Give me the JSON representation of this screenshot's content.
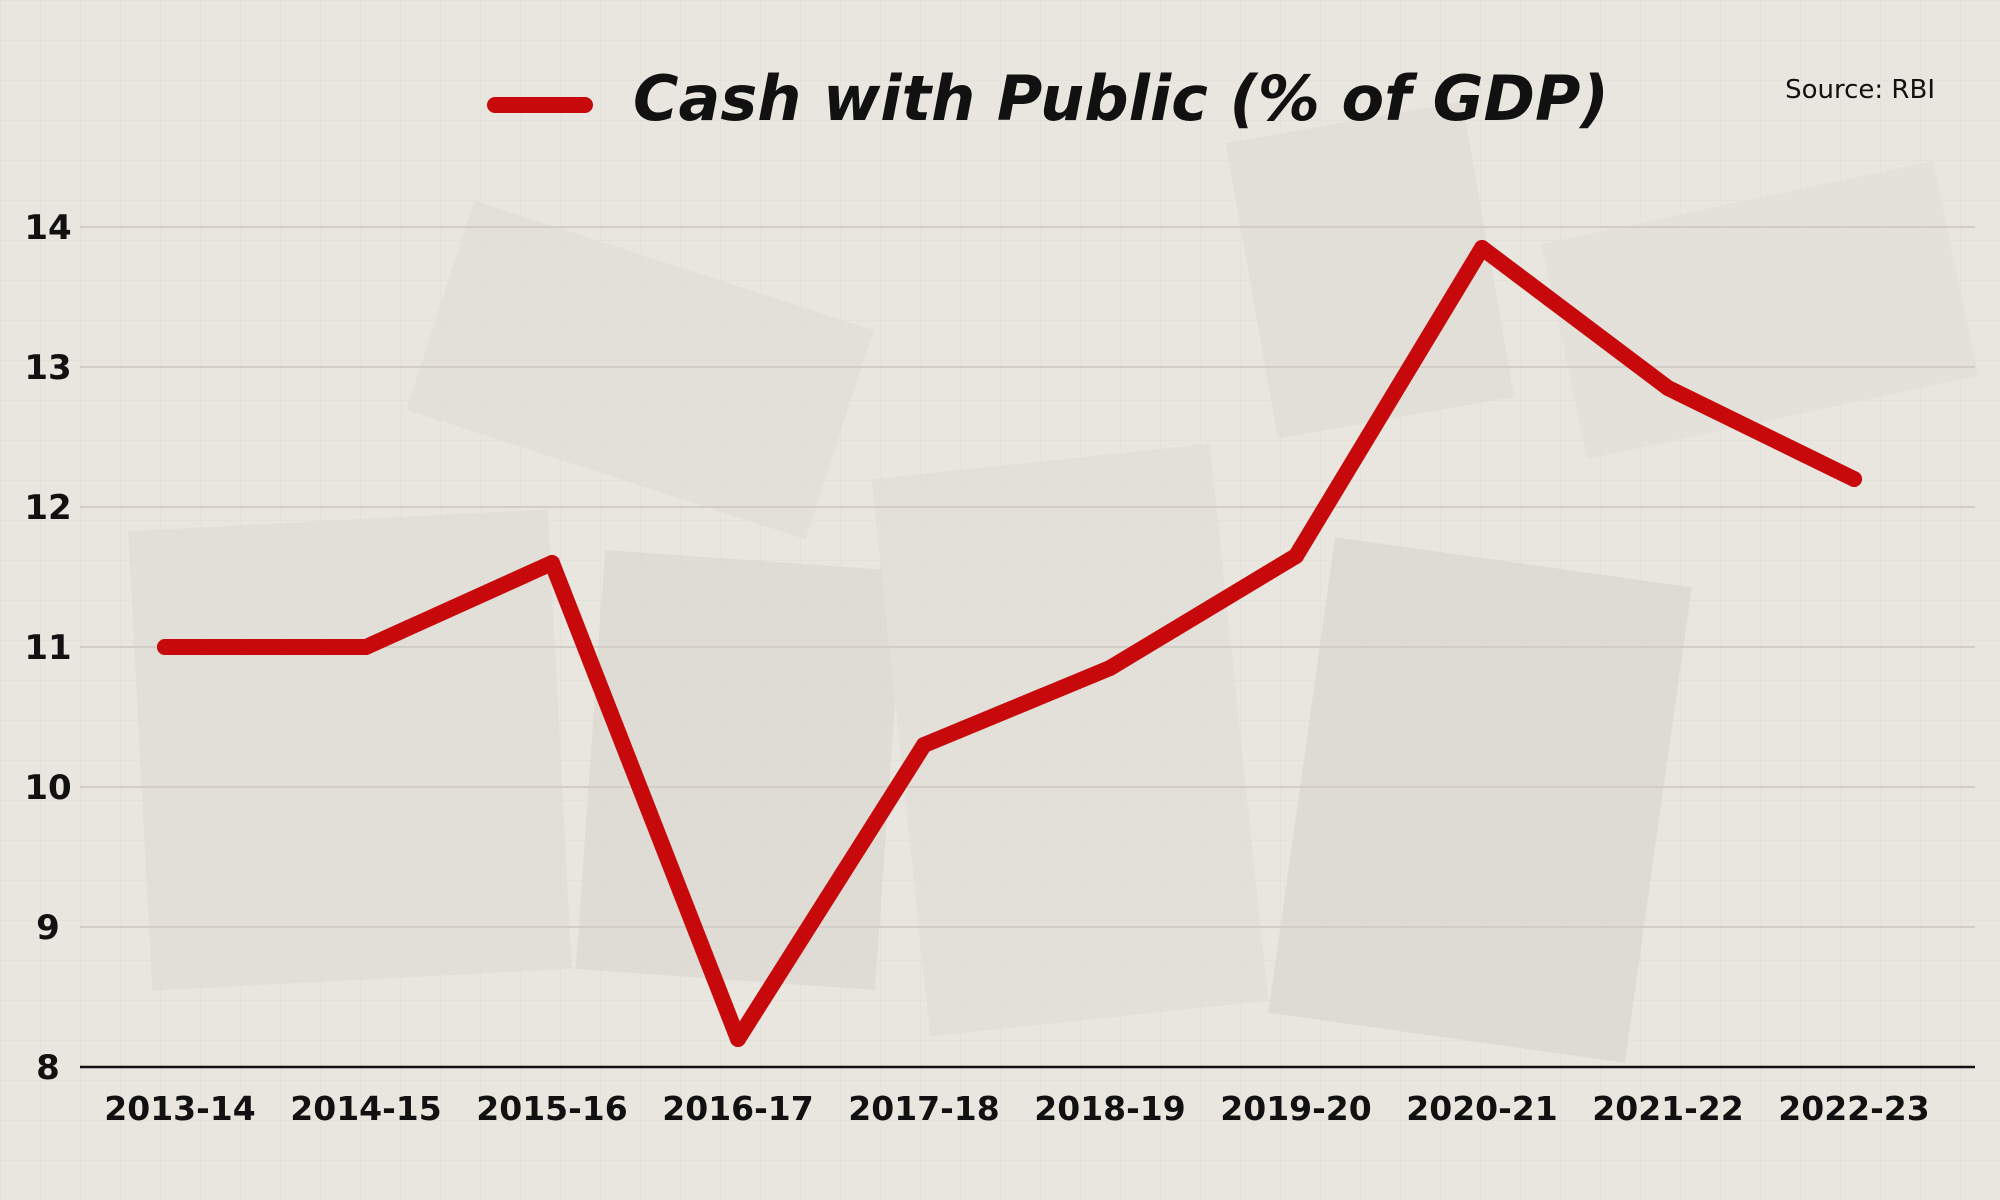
{
  "chart_data": {
    "type": "line",
    "title": "",
    "source": "Source: RBI",
    "categories": [
      "2013-14",
      "2014-15",
      "2015-16",
      "2016-17",
      "2017-18",
      "2018-19",
      "2019-20",
      "2020-21",
      "2021-22",
      "2022-23"
    ],
    "series": [
      {
        "name": "Cash with Public (% of GDP)",
        "color": "#c8090c",
        "values": [
          11.0,
          11.0,
          11.6,
          8.2,
          10.3,
          10.85,
          11.65,
          13.85,
          12.85,
          12.2
        ]
      }
    ],
    "yticks": [
      8,
      9,
      10,
      11,
      12,
      13,
      14
    ],
    "ylim": [
      8,
      14.5
    ],
    "xlabel": "",
    "ylabel": "",
    "grid": true,
    "legend_position": "top-center"
  }
}
